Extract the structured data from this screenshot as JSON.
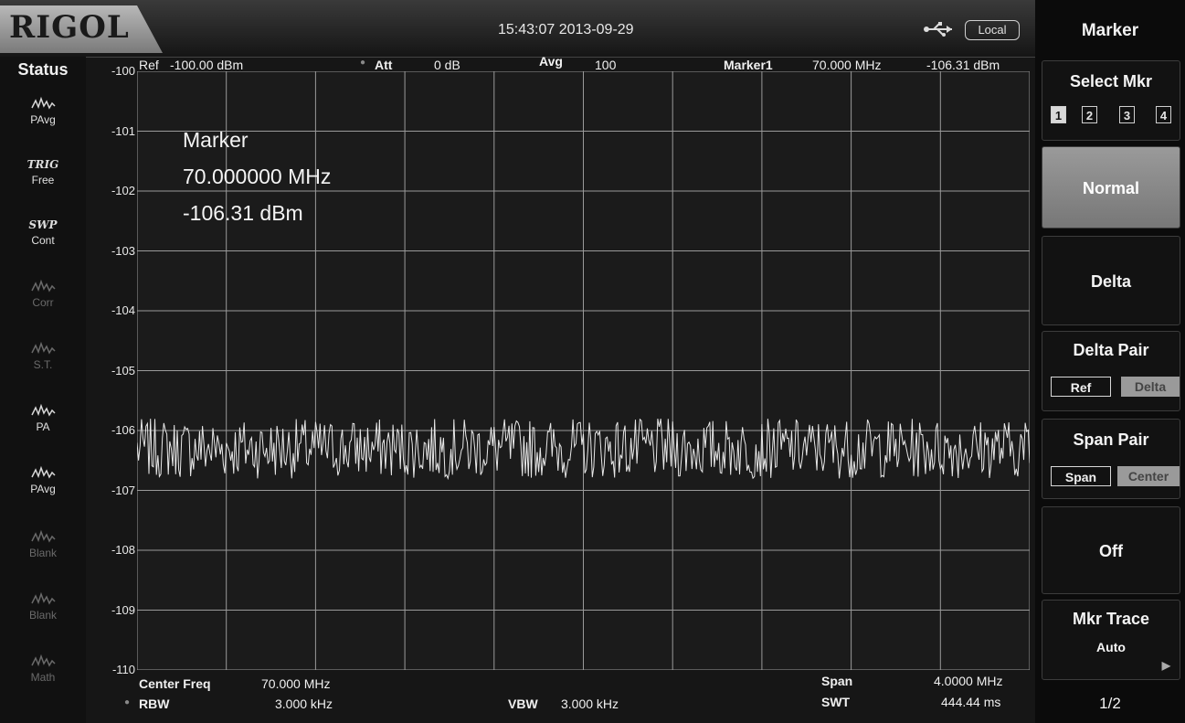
{
  "brand": "RIGOL",
  "datetime": "15:43:07 2013-09-29",
  "remote_status": "Local",
  "status_panel": {
    "title": "Status",
    "items": [
      {
        "name": "pavg-trace-icon",
        "glyph": "",
        "label": "PAvg",
        "active": true
      },
      {
        "name": "trigger-icon",
        "glyph": "TRIG",
        "label": "Free",
        "active": true
      },
      {
        "name": "sweep-icon",
        "glyph": "SWP",
        "label": "Cont",
        "active": true
      },
      {
        "name": "correction-icon",
        "glyph": "",
        "label": "Corr",
        "active": false
      },
      {
        "name": "source-tracking-icon",
        "glyph": "",
        "label": "S.T.",
        "active": false
      },
      {
        "name": "preamp-icon",
        "glyph": "",
        "label": "PA",
        "active": true
      },
      {
        "name": "trace-pavg-icon",
        "glyph": "",
        "label": "PAvg",
        "active": true
      },
      {
        "name": "trace-blank-icon",
        "glyph": "",
        "label": "Blank",
        "active": false
      },
      {
        "name": "trace-blank-2-icon",
        "glyph": "",
        "label": "Blank",
        "active": false
      },
      {
        "name": "trace-math-icon",
        "glyph": "",
        "label": "Math",
        "active": false
      }
    ]
  },
  "header": {
    "ref_label": "Ref",
    "ref_value": "-100.00 dBm",
    "att_label": "Att",
    "att_value": "0 dB",
    "avg_label": "Avg",
    "avg_value": "100",
    "marker_label": "Marker1",
    "marker_freq": "70.000 MHz",
    "marker_level": "-106.31 dBm"
  },
  "marker_readout": {
    "title": "Marker",
    "freq": "70.000000 MHz",
    "level": "-106.31 dBm"
  },
  "footer": {
    "center_label": "Center Freq",
    "center_value": "70.000 MHz",
    "rbw_label": "RBW",
    "rbw_value": "3.000 kHz",
    "vbw_label": "VBW",
    "vbw_value": "3.000 kHz",
    "span_label": "Span",
    "span_value": "4.0000 MHz",
    "swt_label": "SWT",
    "swt_value": "444.44 ms"
  },
  "chart_data": {
    "type": "line",
    "ylim": [
      -110,
      -100
    ],
    "yticks": [
      "-100",
      "-101",
      "-102",
      "-103",
      "-104",
      "-105",
      "-106",
      "-107",
      "-108",
      "-109",
      "-110"
    ],
    "x_center_mhz": 70.0,
    "x_span_mhz": 4.0,
    "x_range_mhz": [
      68.0,
      72.0
    ],
    "noise_floor_dbm": -106.3,
    "noise_spread_db": 0.5,
    "grid": true,
    "grid_divisions": [
      10,
      10
    ],
    "trace_color": "#e8e8e8",
    "grid_color": "#9a9a9a"
  },
  "menu": {
    "title": "Marker",
    "select_mkr": "Select Mkr",
    "markers": [
      "1",
      "2",
      "3",
      "4"
    ],
    "normal": "Normal",
    "delta": "Delta",
    "delta_pair": "Delta Pair",
    "delta_pair_ref": "Ref",
    "delta_pair_delta": "Delta",
    "span_pair": "Span Pair",
    "span_pair_span": "Span",
    "span_pair_center": "Center",
    "off": "Off",
    "mkr_trace": "Mkr Trace",
    "mkr_trace_value": "Auto",
    "page": "1/2"
  }
}
